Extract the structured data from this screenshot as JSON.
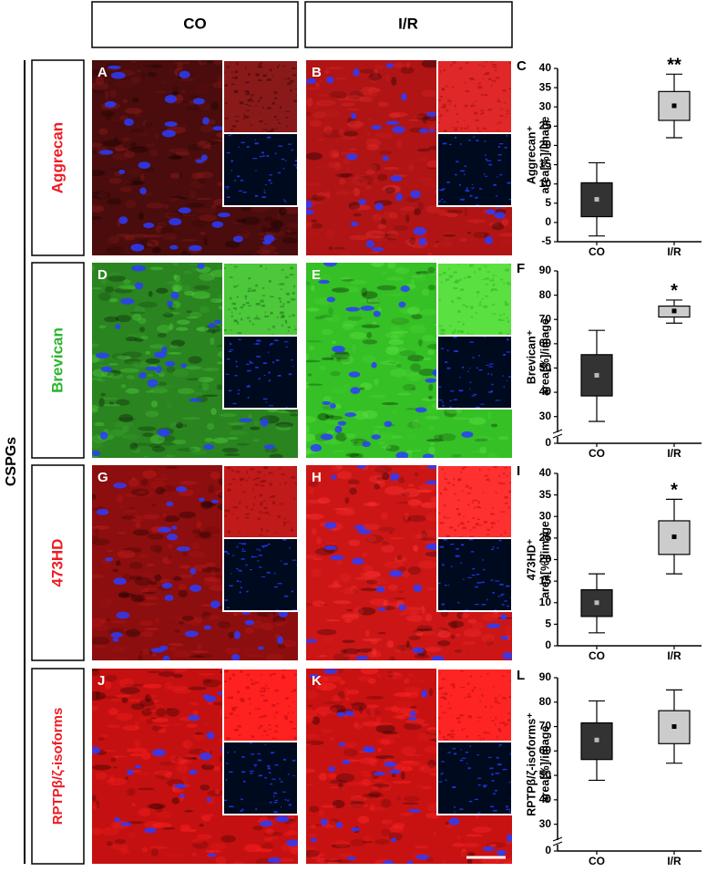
{
  "columns": [
    "CO",
    "I/R"
  ],
  "group_label": "CSPGs",
  "rows": [
    {
      "label": "Aggrecan",
      "color": "#ee1c24",
      "panels": [
        "A",
        "B"
      ]
    },
    {
      "label": "Brevican",
      "color": "#2db52d",
      "panels": [
        "D",
        "E"
      ]
    },
    {
      "label": "473HD",
      "color": "#ee1c24",
      "panels": [
        "G",
        "H"
      ]
    },
    {
      "label": "RPTPβ/ζ-isoforms",
      "color": "#ee1c24",
      "panels": [
        "J",
        "K"
      ]
    }
  ],
  "chart_data": [
    {
      "type": "box",
      "label": "C",
      "ylabel": [
        "Aggrecan⁺",
        "area[%]/image"
      ],
      "categories": [
        "CO",
        "I/R"
      ],
      "ylim": [
        -5,
        40
      ],
      "yticks": [
        -5,
        0,
        5,
        10,
        15,
        20,
        25,
        30,
        35,
        40
      ],
      "boxes": [
        {
          "whisker_low": -3.5,
          "q1": 1.5,
          "q3": 10.3,
          "whisker_high": 15.5,
          "mean": 6,
          "color": "#333333"
        },
        {
          "whisker_low": 22,
          "q1": 26.5,
          "q3": 34,
          "whisker_high": 38.5,
          "mean": 30.3,
          "color": "#cccccc"
        }
      ],
      "annotations": [
        null,
        "**"
      ]
    },
    {
      "type": "box",
      "label": "F",
      "ylabel": [
        "Brevican⁺",
        "area[%]/image"
      ],
      "categories": [
        "CO",
        "I/R"
      ],
      "ylim": [
        25,
        90
      ],
      "yticks": [
        30,
        40,
        50,
        60,
        70,
        80,
        90
      ],
      "axis_break": true,
      "break_ticks": [
        0
      ],
      "boxes": [
        {
          "whisker_low": 28,
          "q1": 38.5,
          "q3": 55.5,
          "whisker_high": 65.5,
          "mean": 47,
          "color": "#333333"
        },
        {
          "whisker_low": 68.5,
          "q1": 71,
          "q3": 75.5,
          "whisker_high": 78,
          "mean": 73.5,
          "color": "#cccccc"
        }
      ],
      "annotations": [
        null,
        "*"
      ]
    },
    {
      "type": "box",
      "label": "I",
      "ylabel": [
        "473HD⁺",
        "area[%]/image"
      ],
      "categories": [
        "CO",
        "I/R"
      ],
      "ylim": [
        0,
        40
      ],
      "yticks": [
        0,
        5,
        10,
        15,
        20,
        25,
        30,
        35,
        40
      ],
      "boxes": [
        {
          "whisker_low": 3,
          "q1": 6.8,
          "q3": 13,
          "whisker_high": 16.7,
          "mean": 10,
          "color": "#333333"
        },
        {
          "whisker_low": 16.7,
          "q1": 21.2,
          "q3": 29,
          "whisker_high": 34,
          "mean": 25.3,
          "color": "#cccccc"
        }
      ],
      "annotations": [
        null,
        "*"
      ]
    },
    {
      "type": "box",
      "label": "L",
      "ylabel": [
        "RPTPβ/ζ-isoforms⁺",
        "area[%]/image"
      ],
      "categories": [
        "CO",
        "I/R"
      ],
      "ylim": [
        25,
        90
      ],
      "yticks": [
        30,
        40,
        50,
        60,
        70,
        80,
        90
      ],
      "axis_break": true,
      "break_ticks": [
        0
      ],
      "boxes": [
        {
          "whisker_low": 48,
          "q1": 56.5,
          "q3": 71.5,
          "whisker_high": 80.5,
          "mean": 64.5,
          "color": "#333333"
        },
        {
          "whisker_low": 55,
          "q1": 63,
          "q3": 76.5,
          "whisker_high": 85,
          "mean": 70,
          "color": "#cccccc"
        }
      ]
    }
  ]
}
